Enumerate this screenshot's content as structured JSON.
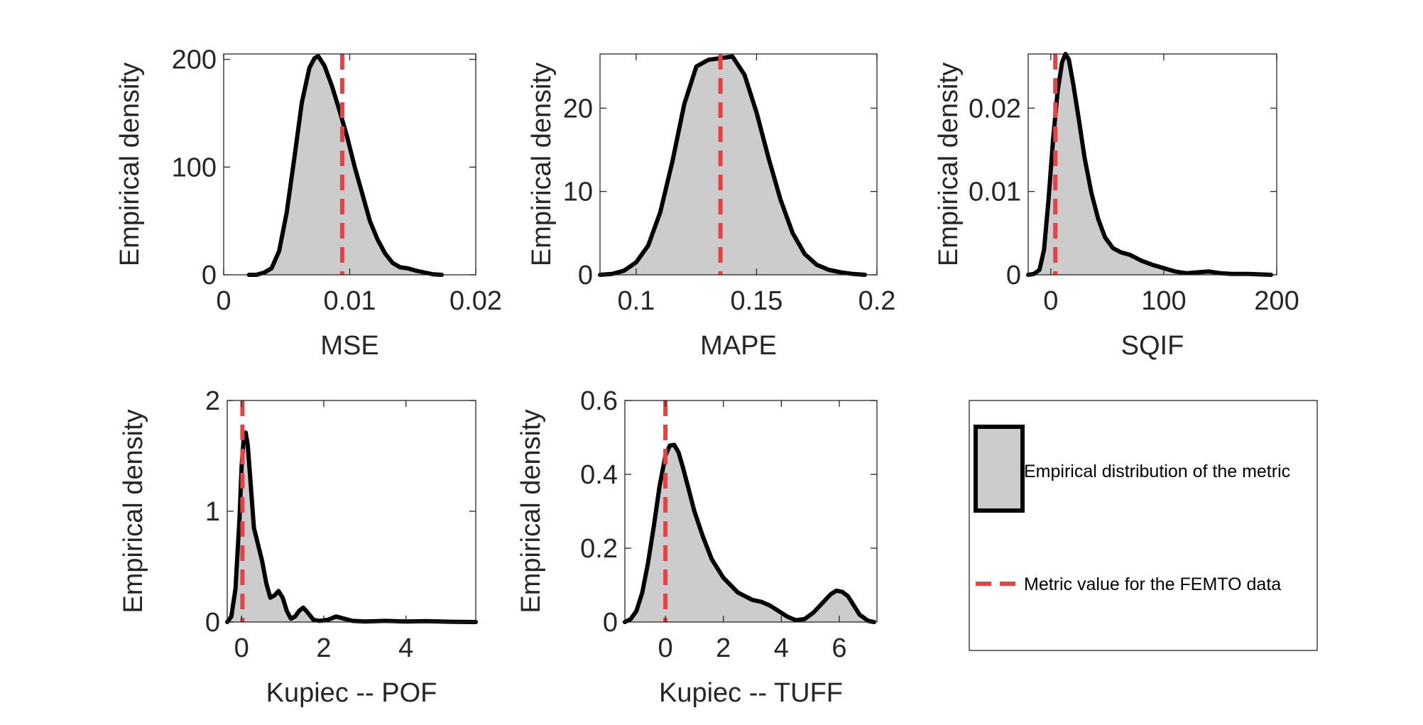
{
  "chart_data": [
    {
      "type": "area",
      "xlabel": "MSE",
      "ylabel": "Empirical density",
      "xlim": [
        0,
        0.02
      ],
      "ylim": [
        0,
        205
      ],
      "xticks": [
        0,
        0.01,
        0.02
      ],
      "xtick_labels": [
        "0",
        "0.01",
        "0.02"
      ],
      "yticks": [
        0,
        100,
        200
      ],
      "ytick_labels": [
        "0",
        "100",
        "200"
      ],
      "metric_value": 0.0094,
      "density": {
        "x": [
          0.002,
          0.0026,
          0.0032,
          0.0038,
          0.0044,
          0.005,
          0.0056,
          0.0062,
          0.0068,
          0.0072,
          0.0075,
          0.008,
          0.0086,
          0.0092,
          0.0098,
          0.0104,
          0.011,
          0.0116,
          0.0122,
          0.0128,
          0.0134,
          0.014,
          0.0146,
          0.0152,
          0.016,
          0.0166,
          0.0173
        ],
        "y": [
          0,
          0,
          2,
          6,
          22,
          58,
          108,
          160,
          192,
          201,
          203,
          194,
          175,
          152,
          128,
          100,
          75,
          50,
          33,
          20,
          11,
          7,
          6,
          4,
          2,
          0.5,
          0
        ]
      }
    },
    {
      "type": "area",
      "xlabel": "MAPE",
      "ylabel": "Empirical density",
      "xlim": [
        0.085,
        0.2
      ],
      "ylim": [
        0,
        26.5
      ],
      "xticks": [
        0.1,
        0.15,
        0.2
      ],
      "xtick_labels": [
        "0.1",
        "0.15",
        "0.2"
      ],
      "yticks": [
        0,
        10,
        20
      ],
      "ytick_labels": [
        "0",
        "10",
        "20"
      ],
      "metric_value": 0.135,
      "density": {
        "x": [
          0.085,
          0.09,
          0.095,
          0.1,
          0.105,
          0.11,
          0.115,
          0.12,
          0.125,
          0.13,
          0.135,
          0.14,
          0.145,
          0.15,
          0.155,
          0.16,
          0.165,
          0.17,
          0.175,
          0.18,
          0.185,
          0.19,
          0.195
        ],
        "y": [
          0,
          0.1,
          0.5,
          1.5,
          3.5,
          7.5,
          13.5,
          20.5,
          25,
          25.8,
          26,
          26.2,
          24,
          19.5,
          14,
          9,
          5,
          2.5,
          1.2,
          0.6,
          0.3,
          0.1,
          0
        ]
      }
    },
    {
      "type": "area",
      "xlabel": "SQIF",
      "ylabel": "Empirical density",
      "xlim": [
        -20,
        200
      ],
      "ylim": [
        0,
        0.0265
      ],
      "xticks": [
        0,
        100,
        200
      ],
      "xtick_labels": [
        "0",
        "100",
        "200"
      ],
      "yticks": [
        0,
        0.01,
        0.02
      ],
      "ytick_labels": [
        "0",
        "0.01",
        "0.02"
      ],
      "metric_value": 4,
      "density": {
        "x": [
          -20,
          -15,
          -10,
          -6,
          -2,
          2,
          6,
          10,
          13,
          16,
          20,
          25,
          30,
          36,
          42,
          48,
          55,
          62,
          70,
          80,
          90,
          100,
          110,
          120,
          130,
          140,
          150,
          160,
          175,
          195
        ],
        "y": [
          0,
          0.0001,
          0.0006,
          0.003,
          0.009,
          0.0162,
          0.022,
          0.0255,
          0.0265,
          0.0258,
          0.0228,
          0.0185,
          0.014,
          0.0098,
          0.0067,
          0.0045,
          0.0032,
          0.0027,
          0.0024,
          0.0017,
          0.0012,
          0.0008,
          0.0004,
          0.0002,
          0.0003,
          0.0004,
          0.0002,
          0.0001,
          0.0001,
          0
        ]
      }
    },
    {
      "type": "area",
      "xlabel": "Kupiec -- POF",
      "ylabel": "Empirical density",
      "xlim": [
        -0.35,
        5.7
      ],
      "ylim": [
        0,
        2
      ],
      "xticks": [
        0,
        2,
        4
      ],
      "xtick_labels": [
        "0",
        "2",
        "4"
      ],
      "yticks": [
        0,
        1,
        2
      ],
      "ytick_labels": [
        "0",
        "1",
        "2"
      ],
      "metric_value": 0.02,
      "density": {
        "x": [
          -0.35,
          -0.25,
          -0.15,
          -0.05,
          0.0,
          0.05,
          0.1,
          0.15,
          0.22,
          0.3,
          0.4,
          0.5,
          0.6,
          0.7,
          0.8,
          0.9,
          1.0,
          1.1,
          1.2,
          1.3,
          1.4,
          1.5,
          1.6,
          1.75,
          1.9,
          2.1,
          2.3,
          2.5,
          2.7,
          3.0,
          3.5,
          4.0,
          4.5,
          5.0,
          5.7
        ],
        "y": [
          0,
          0.05,
          0.3,
          0.95,
          1.4,
          1.65,
          1.71,
          1.6,
          1.25,
          0.85,
          0.7,
          0.55,
          0.35,
          0.22,
          0.24,
          0.28,
          0.22,
          0.1,
          0.03,
          0.05,
          0.1,
          0.13,
          0.09,
          0.02,
          0.01,
          0.02,
          0.05,
          0.03,
          0.01,
          0.005,
          0.01,
          0.005,
          0.008,
          0.003,
          0
        ]
      }
    },
    {
      "type": "area",
      "xlabel": "Kupiec -- TUFF",
      "ylabel": "Empirical density",
      "xlim": [
        -1.4,
        7.3
      ],
      "ylim": [
        0,
        0.6
      ],
      "xticks": [
        0,
        2,
        4,
        6
      ],
      "xtick_labels": [
        "0",
        "2",
        "4",
        "6"
      ],
      "yticks": [
        0,
        0.2,
        0.4,
        0.6
      ],
      "ytick_labels": [
        "0",
        "0.2",
        "0.4",
        "0.6"
      ],
      "metric_value": 0.0,
      "density": {
        "x": [
          -1.4,
          -1.2,
          -1.0,
          -0.8,
          -0.6,
          -0.4,
          -0.2,
          0.0,
          0.15,
          0.3,
          0.45,
          0.6,
          0.8,
          1.0,
          1.3,
          1.6,
          2.0,
          2.5,
          3.0,
          3.3,
          3.6,
          3.9,
          4.2,
          4.5,
          4.8,
          5.1,
          5.4,
          5.7,
          5.9,
          6.1,
          6.3,
          6.5,
          6.7,
          7.0,
          7.2
        ],
        "y": [
          0,
          0.008,
          0.03,
          0.08,
          0.16,
          0.26,
          0.37,
          0.45,
          0.478,
          0.48,
          0.46,
          0.42,
          0.36,
          0.3,
          0.23,
          0.17,
          0.12,
          0.08,
          0.06,
          0.055,
          0.045,
          0.03,
          0.015,
          0.005,
          0.008,
          0.025,
          0.05,
          0.075,
          0.085,
          0.082,
          0.07,
          0.045,
          0.02,
          0.003,
          0
        ]
      }
    }
  ],
  "legend": {
    "items": [
      {
        "label": "Empirical distribution of the metric",
        "kind": "patch"
      },
      {
        "label": "Metric value for the FEMTO data",
        "kind": "dashed-line"
      }
    ],
    "colors": {
      "patch_fill": "#cccccc",
      "patch_edge": "#000000",
      "line": "#e84141"
    }
  },
  "colors": {
    "area": "#cccccc",
    "curve": "#000000",
    "metric_line": "#e84141",
    "axes": "#262626"
  }
}
